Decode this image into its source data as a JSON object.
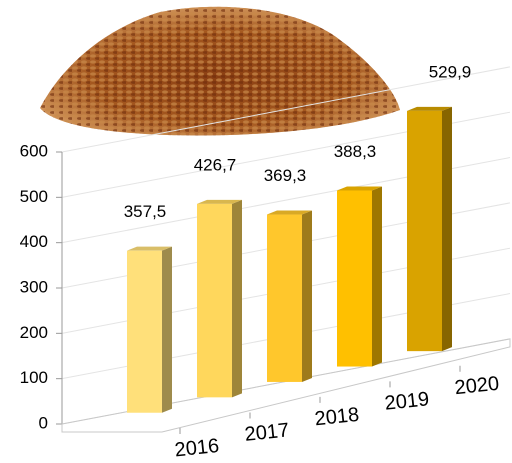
{
  "chart_data": {
    "type": "bar",
    "categories": [
      "2016",
      "2017",
      "2018",
      "2019",
      "2020"
    ],
    "values": [
      357.5,
      426.7,
      369.3,
      388.3,
      529.9
    ],
    "value_labels": [
      "357,5",
      "426,7",
      "369,3",
      "388,3",
      "529,9"
    ],
    "colors": [
      "#FFE07A",
      "#FFD75C",
      "#FFC72C",
      "#FFC000",
      "#D9A300"
    ],
    "ylim": [
      0,
      600
    ],
    "yticks": [
      0,
      100,
      200,
      300,
      400,
      500,
      600
    ],
    "grid": true
  }
}
